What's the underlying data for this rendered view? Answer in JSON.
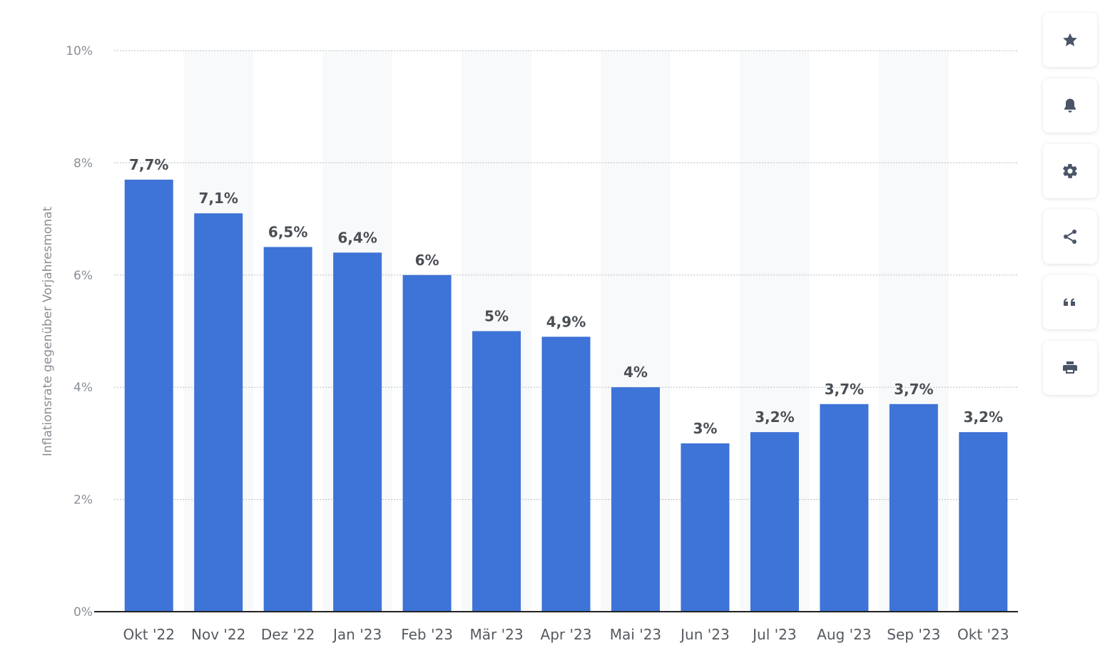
{
  "chart_data": {
    "type": "bar",
    "ylabel": "Inflationsrate gegenüber Vorjahresmonat",
    "xlabel": "",
    "ylim": [
      0,
      10
    ],
    "y_ticks": [
      "0%",
      "2%",
      "4%",
      "6%",
      "8%",
      "10%"
    ],
    "grid": true,
    "bar_color": "#3e73d7",
    "categories": [
      "Okt '22",
      "Nov '22",
      "Dez '22",
      "Jan '23",
      "Feb '23",
      "Mär '23",
      "Apr '23",
      "Mai '23",
      "Jun '23",
      "Jul '23",
      "Aug '23",
      "Sep '23",
      "Okt '23"
    ],
    "values": [
      7.7,
      7.1,
      6.5,
      6.4,
      6,
      5,
      4.9,
      4,
      3,
      3.2,
      3.7,
      3.7,
      3.2
    ],
    "data_labels": [
      "7,7%",
      "7,1%",
      "6,5%",
      "6,4%",
      "6%",
      "5%",
      "4,9%",
      "4%",
      "3%",
      "3,2%",
      "3,7%",
      "3,7%",
      "3,2%"
    ]
  },
  "toolbar": {
    "buttons": [
      {
        "name": "favorite",
        "icon": "star-icon"
      },
      {
        "name": "notification",
        "icon": "bell-icon"
      },
      {
        "name": "settings",
        "icon": "gear-icon"
      },
      {
        "name": "share",
        "icon": "share-icon"
      },
      {
        "name": "cite",
        "icon": "quote-icon"
      },
      {
        "name": "print",
        "icon": "printer-icon"
      }
    ],
    "icon_color": "#4a5568"
  }
}
